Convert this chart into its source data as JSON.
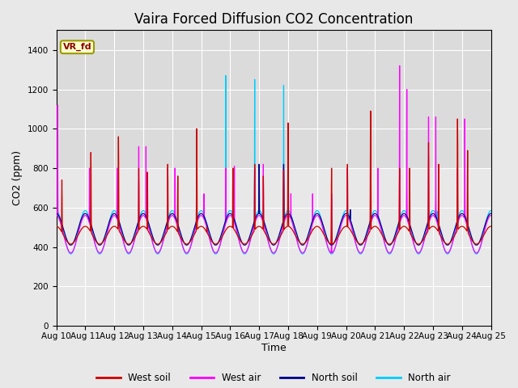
{
  "title": "Vaira Forced Diffusion CO2 Concentration",
  "xlabel": "Time",
  "ylabel": "CO2 (ppm)",
  "ylim": [
    0,
    1500
  ],
  "yticks": [
    0,
    200,
    400,
    600,
    800,
    1000,
    1200,
    1400
  ],
  "xtick_labels": [
    "Aug 10",
    "Aug 11",
    "Aug 12",
    "Aug 13",
    "Aug 14",
    "Aug 15",
    "Aug 16",
    "Aug 17",
    "Aug 18",
    "Aug 19",
    "Aug 20",
    "Aug 21",
    "Aug 22",
    "Aug 23",
    "Aug 24",
    "Aug 25"
  ],
  "legend_label": "VR_fd",
  "series_labels": [
    "West soil",
    "West air",
    "North soil",
    "North air"
  ],
  "series_colors": [
    "#cc0000",
    "#ff00ff",
    "#00008b",
    "#00ccff"
  ],
  "bg_color": "#e8e8e8",
  "grid_color": "#ffffff",
  "title_fontsize": 12,
  "label_fontsize": 9,
  "tick_fontsize": 7.5,
  "n_days": 15,
  "ppd": 144
}
